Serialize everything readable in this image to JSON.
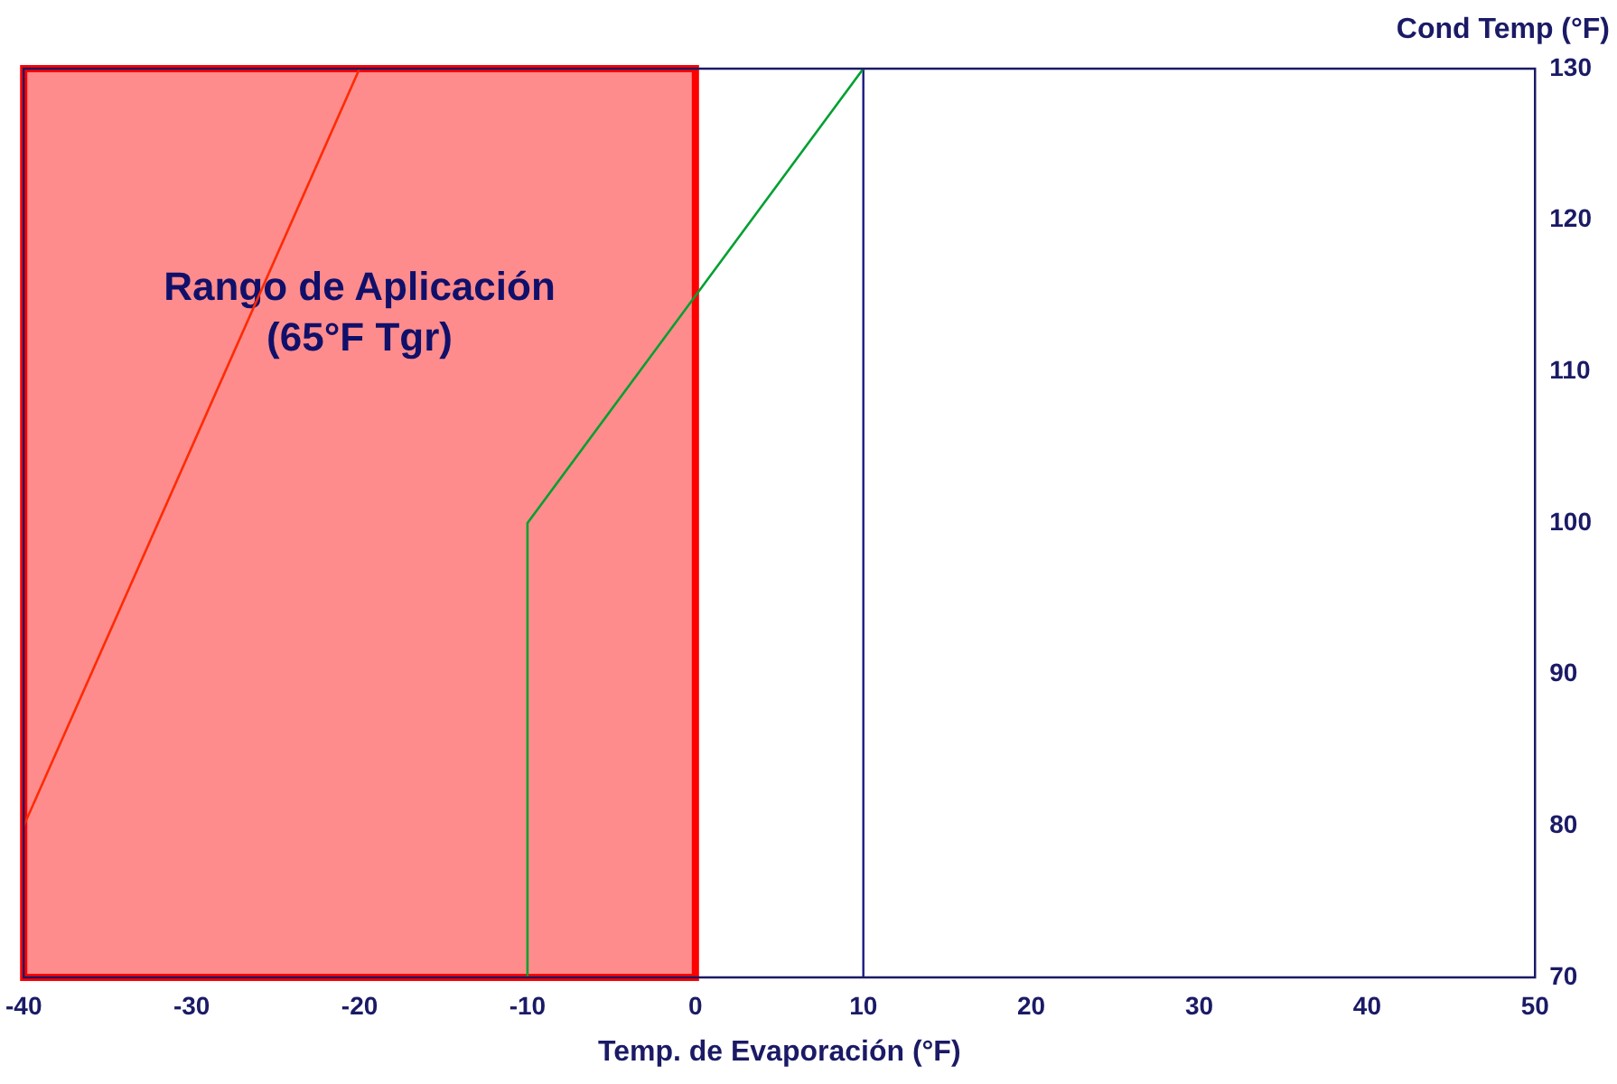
{
  "chart_data": {
    "type": "line",
    "xlabel": "Temp. de Evaporación (°F)",
    "ylabel": "Cond Temp (°F)",
    "xlim": [
      -40,
      50
    ],
    "xticks": [
      -40,
      -30,
      -20,
      -10,
      0,
      10,
      20,
      30,
      40,
      50
    ],
    "ylim": [
      70,
      130
    ],
    "yticks": [
      70,
      80,
      90,
      100,
      110,
      120,
      130
    ],
    "grid": false,
    "legend": false,
    "marker": "none",
    "line_style": "solid",
    "series": [
      {
        "color": "#ff2a00",
        "x": [
          -40,
          -20
        ],
        "values": [
          80,
          130
        ]
      },
      {
        "color": "#00a030",
        "x": [
          -10,
          -10,
          10
        ],
        "values": [
          70,
          100,
          130
        ]
      }
    ],
    "bands": [
      {
        "axis": "x",
        "from": -40,
        "to": 0,
        "label": "Rango de Aplicación\n(65°F Tgr)",
        "color": "#ff0000"
      }
    ],
    "ref_lines": [
      {
        "axis": "x",
        "value": 10,
        "color": "#1a1a80"
      }
    ]
  }
}
